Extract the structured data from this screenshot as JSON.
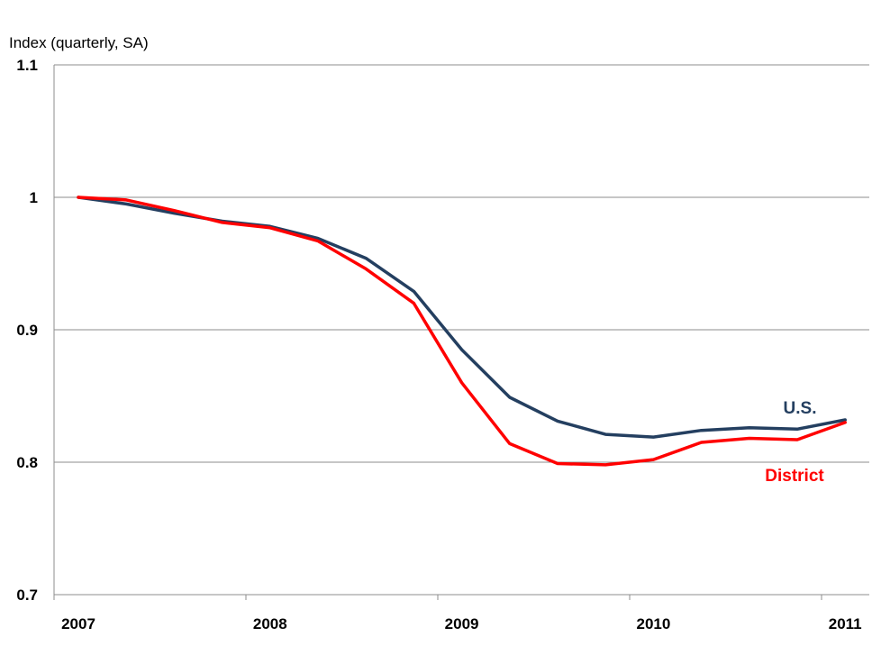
{
  "chart_data": {
    "type": "line",
    "title": "",
    "xlabel": "",
    "ylabel": "Index (quarterly, SA)",
    "ylim": [
      0.7,
      1.1
    ],
    "yticks": [
      "0.7",
      "0.8",
      "0.9",
      "1",
      "1.1"
    ],
    "ytick_values": [
      0.7,
      0.8,
      0.9,
      1.0,
      1.1
    ],
    "xticks": [
      "2007",
      "2008",
      "2009",
      "2010",
      "2011"
    ],
    "grid": "horizontal",
    "x": [
      "2007Q1",
      "2007Q2",
      "2007Q3",
      "2007Q4",
      "2008Q1",
      "2008Q2",
      "2008Q3",
      "2008Q4",
      "2009Q1",
      "2009Q2",
      "2009Q3",
      "2009Q4",
      "2010Q1",
      "2010Q2",
      "2010Q3",
      "2010Q4",
      "2011Q1"
    ],
    "series": [
      {
        "name": "U.S.",
        "color": "#243F60",
        "values": [
          1.0,
          0.995,
          0.988,
          0.982,
          0.978,
          0.969,
          0.954,
          0.929,
          0.885,
          0.849,
          0.831,
          0.821,
          0.819,
          0.824,
          0.826,
          0.825,
          0.832
        ]
      },
      {
        "name": "District",
        "color": "#FF0000",
        "values": [
          1.0,
          0.998,
          0.99,
          0.981,
          0.977,
          0.967,
          0.946,
          0.92,
          0.86,
          0.814,
          0.799,
          0.798,
          0.802,
          0.815,
          0.818,
          0.817,
          0.83
        ]
      }
    ]
  }
}
